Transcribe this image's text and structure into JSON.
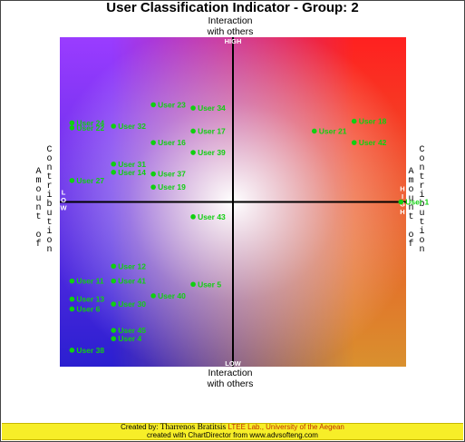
{
  "chart_data": {
    "type": "scatter",
    "title": "User Classification Indicator - Group: 2",
    "xlabel": "Amount of Contribution",
    "ylabel": "Interaction with others",
    "top_axis_title": [
      "Interaction",
      "with others"
    ],
    "bottom_axis_title": [
      "Interaction",
      "with others"
    ],
    "left_axis_title": [
      "Contribution",
      "Amount of"
    ],
    "right_axis_title": [
      "Contribution",
      "Amount of"
    ],
    "quadrant_labels": {
      "top": "HIGH",
      "bottom": "LOW",
      "left": "LOW",
      "right": "HIGH"
    },
    "xlim": [
      -1,
      1
    ],
    "ylim": [
      -1,
      1
    ],
    "point_color": "#10d010",
    "background_colors": {
      "top_left": "#9a3cff",
      "top_right": "#ff2020",
      "bottom_left": "#2b1fd0",
      "bottom_right": "#d9902e",
      "center": "#ffffff"
    },
    "points": [
      {
        "label": "User 23",
        "x": -0.46,
        "y": 0.59
      },
      {
        "label": "User 34",
        "x": -0.23,
        "y": 0.57
      },
      {
        "label": "User 24",
        "x": -0.93,
        "y": 0.48
      },
      {
        "label": "User 22",
        "x": -0.93,
        "y": 0.45
      },
      {
        "label": "User 32",
        "x": -0.69,
        "y": 0.46
      },
      {
        "label": "User 17",
        "x": -0.23,
        "y": 0.43
      },
      {
        "label": "User 16",
        "x": -0.46,
        "y": 0.36
      },
      {
        "label": "User 39",
        "x": -0.23,
        "y": 0.3
      },
      {
        "label": "User 31",
        "x": -0.69,
        "y": 0.23
      },
      {
        "label": "User 14",
        "x": -0.69,
        "y": 0.18
      },
      {
        "label": "User 37",
        "x": -0.46,
        "y": 0.17
      },
      {
        "label": "User 27",
        "x": -0.93,
        "y": 0.13
      },
      {
        "label": "User 19",
        "x": -0.46,
        "y": 0.09
      },
      {
        "label": "User 18",
        "x": 0.7,
        "y": 0.49
      },
      {
        "label": "User 21",
        "x": 0.47,
        "y": 0.43
      },
      {
        "label": "User 42",
        "x": 0.7,
        "y": 0.36
      },
      {
        "label": "User 43",
        "x": -0.23,
        "y": -0.09
      },
      {
        "label": "User 12",
        "x": -0.69,
        "y": -0.39
      },
      {
        "label": "User 11",
        "x": -0.93,
        "y": -0.48
      },
      {
        "label": "User 41",
        "x": -0.69,
        "y": -0.48
      },
      {
        "label": "User 5",
        "x": -0.23,
        "y": -0.5
      },
      {
        "label": "User 40",
        "x": -0.46,
        "y": -0.57
      },
      {
        "label": "User 13",
        "x": -0.93,
        "y": -0.59
      },
      {
        "label": "User 6",
        "x": -0.93,
        "y": -0.65
      },
      {
        "label": "User 30",
        "x": -0.69,
        "y": -0.62
      },
      {
        "label": "User 45",
        "x": -0.69,
        "y": -0.78
      },
      {
        "label": "User 4",
        "x": -0.69,
        "y": -0.83
      },
      {
        "label": "User 38",
        "x": -0.93,
        "y": -0.9
      },
      {
        "label": "User 1",
        "x": 0.97,
        "y": 0.0
      }
    ]
  },
  "footer": {
    "created_by_label": "Created by:",
    "creator": "Tharrenos Bratitsis",
    "lab": "LTEE Lab., University of the Aegean",
    "credit": "created with ChartDirector from www.advsofteng.com"
  }
}
